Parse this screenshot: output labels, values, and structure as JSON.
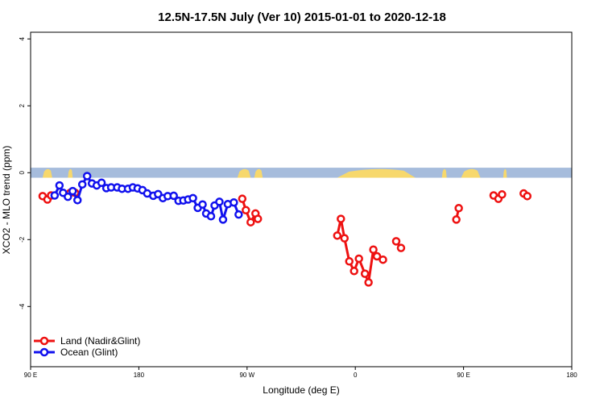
{
  "chart_data": {
    "type": "line",
    "title": "12.5N-17.5N July (Ver 10)   2015-01-01 to 2020-12-18",
    "xlabel": "Longitude (deg E)",
    "ylabel": "XCO2 - MLO trend (ppm)",
    "xlim": [
      90,
      540
    ],
    "ylim": [
      -5.8,
      4.2
    ],
    "x_ticks": [
      {
        "value": 90,
        "label": "90 E"
      },
      {
        "value": 180,
        "label": "180"
      },
      {
        "value": 270,
        "label": "90 W"
      },
      {
        "value": 360,
        "label": "0"
      },
      {
        "value": 450,
        "label": "90 E"
      },
      {
        "value": 540,
        "label": "180"
      }
    ],
    "y_ticks": [
      {
        "value": 4,
        "label": "4"
      },
      {
        "value": 2,
        "label": "2"
      },
      {
        "value": 0,
        "label": "0"
      },
      {
        "value": -2,
        "label": "-2"
      },
      {
        "value": -4,
        "label": "-4"
      }
    ],
    "legend_position": "bottom-left",
    "colors": {
      "land": "#ee1111",
      "ocean": "#1111ee",
      "map_ocean": "#a6bcdc",
      "map_land": "#f7d86c"
    },
    "map_band": {
      "y_min": -0.15,
      "y_max": 0.15
    },
    "map_land_spans": [
      [
        100,
        108
      ],
      [
        121,
        125
      ],
      [
        262,
        273
      ],
      [
        276,
        283
      ],
      [
        345,
        410
      ],
      [
        432,
        436
      ],
      [
        448,
        464
      ],
      [
        483,
        486
      ]
    ],
    "series": [
      {
        "name": "Land (Nadir&Glint)",
        "key": "land",
        "segments": [
          [
            [
              100,
              -0.7
            ],
            [
              104,
              -0.8
            ],
            [
              107,
              -0.68
            ]
          ],
          [
            [
              123,
              -0.6
            ],
            [
              127,
              -0.6
            ]
          ],
          [
            [
              266,
              -0.78
            ],
            [
              269,
              -1.12
            ],
            [
              273,
              -1.48
            ],
            [
              277,
              -1.22
            ],
            [
              279,
              -1.38
            ]
          ],
          [
            [
              345,
              -1.88
            ],
            [
              348,
              -1.38
            ],
            [
              351,
              -1.96
            ],
            [
              355,
              -2.65
            ],
            [
              359,
              -2.94
            ],
            [
              363,
              -2.57
            ],
            [
              368,
              -3.02
            ],
            [
              371,
              -3.28
            ],
            [
              375,
              -2.3
            ],
            [
              378,
              -2.5
            ],
            [
              383,
              -2.6
            ]
          ],
          [
            [
              394,
              -2.05
            ],
            [
              398,
              -2.25
            ]
          ],
          [
            [
              444,
              -1.4
            ],
            [
              446,
              -1.06
            ]
          ],
          [
            [
              475,
              -0.68
            ],
            [
              479,
              -0.78
            ],
            [
              482,
              -0.65
            ]
          ],
          [
            [
              500,
              -0.62
            ],
            [
              503,
              -0.7
            ]
          ]
        ]
      },
      {
        "name": "Ocean (Glint)",
        "key": "ocean",
        "segments": [
          [
            [
              110,
              -0.68
            ],
            [
              114,
              -0.38
            ],
            [
              117,
              -0.6
            ],
            [
              121,
              -0.72
            ],
            [
              125,
              -0.55
            ],
            [
              129,
              -0.82
            ],
            [
              133,
              -0.35
            ],
            [
              137,
              -0.1
            ],
            [
              141,
              -0.32
            ],
            [
              145,
              -0.38
            ],
            [
              149,
              -0.3
            ],
            [
              153,
              -0.46
            ],
            [
              157,
              -0.44
            ],
            [
              162,
              -0.44
            ],
            [
              166,
              -0.48
            ],
            [
              171,
              -0.48
            ],
            [
              175,
              -0.44
            ],
            [
              179,
              -0.47
            ],
            [
              183,
              -0.52
            ],
            [
              187,
              -0.62
            ],
            [
              192,
              -0.69
            ],
            [
              196,
              -0.64
            ],
            [
              200,
              -0.76
            ],
            [
              204,
              -0.7
            ],
            [
              209,
              -0.69
            ],
            [
              213,
              -0.84
            ],
            [
              217,
              -0.83
            ],
            [
              221,
              -0.8
            ],
            [
              225,
              -0.76
            ],
            [
              229,
              -1.05
            ],
            [
              233,
              -0.95
            ],
            [
              236,
              -1.22
            ],
            [
              240,
              -1.3
            ],
            [
              243,
              -0.98
            ],
            [
              247,
              -0.87
            ],
            [
              250,
              -1.4
            ],
            [
              254,
              -0.94
            ],
            [
              259,
              -0.89
            ],
            [
              263,
              -1.25
            ]
          ]
        ]
      }
    ]
  }
}
